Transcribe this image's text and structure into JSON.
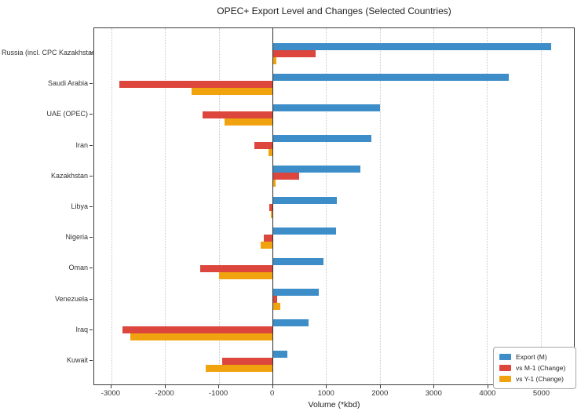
{
  "colors": {
    "export_blue": "#3c8dc8",
    "m1_red": "#dc463c",
    "y1_orange": "#f0a30f",
    "grid": "#c9c9c9",
    "axis": "#3a3a3a"
  },
  "chart_data": {
    "type": "bar",
    "orientation": "horizontal",
    "title": "OPEC+ Export Level and Changes (Selected Countries)",
    "xlabel": "Volume (*kbd)",
    "xlim": [
      -3320,
      5620
    ],
    "x_ticks": [
      -3000,
      -2000,
      -1000,
      0,
      1000,
      2000,
      3000,
      4000,
      5000
    ],
    "grid": "vertical dotted gridlines at each 1000",
    "legend_position": "lower right",
    "categories": [
      "Russia (incl. CPC Kazakhstan)",
      "Saudi Arabia",
      "UAE (OPEC)",
      "Iran",
      "Kazakhstan",
      "Libya",
      "Nigeria",
      "Oman",
      "Venezuela",
      "Iraq",
      "Kuwait"
    ],
    "series": [
      {
        "name": "Export (M)",
        "color": "#3c8dc8",
        "values": [
          5200,
          4400,
          2000,
          1850,
          1640,
          1200,
          1190,
          950,
          870,
          680,
          280
        ]
      },
      {
        "name": "vs M-1 (Change)",
        "color": "#dc463c",
        "values": [
          800,
          -2850,
          -1300,
          -330,
          500,
          -60,
          -160,
          -1350,
          90,
          -2800,
          -930
        ]
      },
      {
        "name": "vs Y-1 (Change)",
        "color": "#f0a30f",
        "values": [
          75,
          -1500,
          -890,
          -70,
          55,
          -25,
          -215,
          -1000,
          150,
          -2650,
          -1240
        ]
      }
    ]
  }
}
